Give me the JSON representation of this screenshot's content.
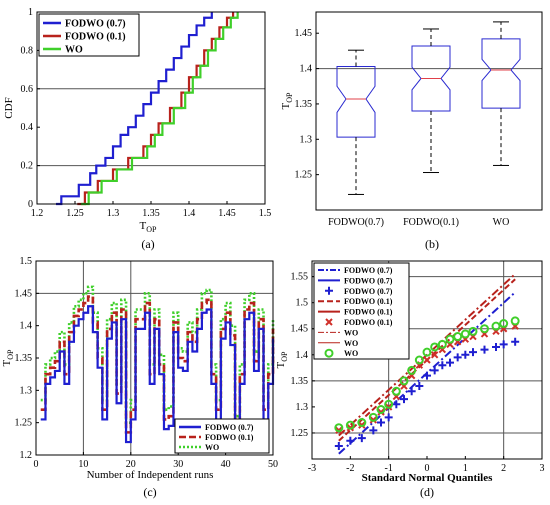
{
  "chart_data": [
    {
      "id": "a",
      "type": "line",
      "subtype": "empirical-cdf-step",
      "caption": "(a)",
      "ylabel": "CDF",
      "xlabel": "T",
      "xlabel_sub": "OP",
      "xlim": [
        1.2,
        1.5
      ],
      "ylim": [
        0,
        1
      ],
      "xticks": [
        "1.2",
        "1.25",
        "1.3",
        "1.35",
        "1.4",
        "1.45",
        "1.5"
      ],
      "yticks": [
        "0",
        "0.2",
        "0.4",
        "0.6",
        "0.8",
        "1"
      ],
      "grid_y": [
        0.2,
        0.6
      ],
      "legend_position": "top-left",
      "series": [
        {
          "name": "FODWO (0.7)",
          "color": "#1f1fd0",
          "x": [
            1.225,
            1.232,
            1.255,
            1.27,
            1.278,
            1.29,
            1.3,
            1.31,
            1.32,
            1.33,
            1.34,
            1.35,
            1.36,
            1.37,
            1.38,
            1.39,
            1.4,
            1.41,
            1.42,
            1.43
          ],
          "y": [
            0,
            0.04,
            0.1,
            0.16,
            0.2,
            0.24,
            0.3,
            0.36,
            0.4,
            0.46,
            0.52,
            0.58,
            0.64,
            0.7,
            0.76,
            0.82,
            0.88,
            0.93,
            0.97,
            1.0
          ]
        },
        {
          "name": "FODWO (0.1)",
          "color": "#b8221c",
          "x": [
            1.253,
            1.263,
            1.28,
            1.3,
            1.32,
            1.34,
            1.35,
            1.36,
            1.375,
            1.39,
            1.4,
            1.41,
            1.42,
            1.43,
            1.44,
            1.45,
            1.458
          ],
          "y": [
            0,
            0.06,
            0.12,
            0.18,
            0.24,
            0.3,
            0.36,
            0.42,
            0.5,
            0.58,
            0.66,
            0.72,
            0.8,
            0.86,
            0.92,
            0.97,
            1.0
          ]
        },
        {
          "name": "WO",
          "color": "#3fcf2a",
          "x": [
            1.258,
            1.268,
            1.285,
            1.305,
            1.325,
            1.345,
            1.355,
            1.365,
            1.38,
            1.395,
            1.405,
            1.415,
            1.425,
            1.435,
            1.445,
            1.455,
            1.464
          ],
          "y": [
            0,
            0.06,
            0.12,
            0.18,
            0.24,
            0.3,
            0.36,
            0.42,
            0.5,
            0.58,
            0.66,
            0.72,
            0.8,
            0.86,
            0.92,
            0.97,
            1.0
          ]
        }
      ]
    },
    {
      "id": "b",
      "type": "boxplot",
      "caption": "(b)",
      "ylabel": "T",
      "ylabel_sub": "OP",
      "ylim": [
        1.2,
        1.48
      ],
      "yticks": [
        "1.25",
        "1.3",
        "1.35",
        "1.4",
        "1.45"
      ],
      "grid_y": [
        1.4
      ],
      "categories": [
        "FODWO(0.7)",
        "FODWO(0.1)",
        "WO"
      ],
      "boxes": [
        {
          "whisker_low": 1.222,
          "q1": 1.303,
          "median": 1.357,
          "q3": 1.403,
          "whisker_high": 1.426,
          "notch_low": 1.338,
          "notch_high": 1.375
        },
        {
          "whisker_low": 1.253,
          "q1": 1.34,
          "median": 1.386,
          "q3": 1.432,
          "whisker_high": 1.456,
          "notch_low": 1.37,
          "notch_high": 1.402
        },
        {
          "whisker_low": 1.263,
          "q1": 1.344,
          "median": 1.398,
          "q3": 1.442,
          "whisker_high": 1.466,
          "notch_low": 1.383,
          "notch_high": 1.413
        }
      ],
      "box_color": "#2a2ad0",
      "median_color": "#e0404a"
    },
    {
      "id": "c",
      "type": "line",
      "subtype": "step",
      "caption": "(c)",
      "ylabel": "T",
      "ylabel_sub": "OP",
      "xlabel": "Number of Independent runs",
      "xlim": [
        0,
        50
      ],
      "ylim": [
        1.2,
        1.5
      ],
      "xticks": [
        "0",
        "10",
        "20",
        "30",
        "40",
        "50"
      ],
      "yticks": [
        "1.2",
        "1.25",
        "1.3",
        "1.35",
        "1.4",
        "1.45",
        "1.5"
      ],
      "grid_x": [
        10,
        20
      ],
      "grid_y": [
        1.45
      ],
      "legend_position": "bottom-right",
      "runs_fodwo07": [
        1.255,
        1.31,
        1.32,
        1.33,
        1.36,
        1.31,
        1.375,
        1.4,
        1.41,
        1.42,
        1.43,
        1.39,
        1.335,
        1.255,
        1.38,
        1.405,
        1.28,
        1.41,
        1.22,
        1.255,
        1.395,
        1.395,
        1.42,
        1.31,
        1.395,
        1.325,
        1.24,
        1.245,
        1.39,
        1.335,
        1.33,
        1.375,
        1.36,
        1.395,
        1.42,
        1.425,
        1.31,
        1.255,
        1.38,
        1.405,
        1.37,
        1.23,
        1.31,
        1.41,
        1.42,
        1.33,
        1.395,
        1.255,
        1.31,
        1.38
      ],
      "series": [
        {
          "name": "FODWO (0.7)",
          "color": "#1f1fd0",
          "offset": 0,
          "dash": "none"
        },
        {
          "name": "FODWO (0.1)",
          "color": "#b8221c",
          "offset": 0.015,
          "dash": "7,3"
        },
        {
          "name": "WO",
          "color": "#3fcf2a",
          "offset": 0.03,
          "dash": "2,2"
        }
      ]
    },
    {
      "id": "d",
      "type": "scatter",
      "subtype": "qq-plot",
      "caption": "(d)",
      "ylabel": "T",
      "ylabel_sub": "OP",
      "xlabel": "Standard Normal Quantiles",
      "xlim": [
        -3,
        3
      ],
      "ylim": [
        1.2,
        1.58
      ],
      "xticks": [
        "-3",
        "-2",
        "-1",
        "0",
        "1",
        "2",
        "3"
      ],
      "yticks": [
        "1.25",
        "1.3",
        "1.35",
        "1.4",
        "1.45",
        "1.5",
        "1.55"
      ],
      "grid_x": [
        -1,
        2
      ],
      "grid_y": [
        1.25,
        1.35,
        1.45,
        1.55
      ],
      "legend_position": "top-left",
      "legend": [
        {
          "name": "FODWO (0.7)",
          "color": "#1f1fd0",
          "kind": "dashdot"
        },
        {
          "name": "FODWO (0.7)",
          "color": "#1f1fd0",
          "kind": "solid"
        },
        {
          "name": "FODWO (0.7)",
          "color": "#1f1fd0",
          "kind": "plus"
        },
        {
          "name": "FODWO (0.1)",
          "color": "#b8221c",
          "kind": "dashed"
        },
        {
          "name": "FODWO (0.1)",
          "color": "#b8221c",
          "kind": "solid"
        },
        {
          "name": "FODWO (0.1)",
          "color": "#b8221c",
          "kind": "cross"
        },
        {
          "name": "WO",
          "color": "#b8221c",
          "kind": "dashdot-thin"
        },
        {
          "name": "WO",
          "color": "#b8221c",
          "kind": "solid-thin"
        },
        {
          "name": "WO",
          "color": "#3fcf2a",
          "kind": "circle"
        }
      ],
      "ref_lines": [
        {
          "color": "#1f1fd0",
          "from": [
            -2.3,
            1.21
          ],
          "to": [
            2.3,
            1.52
          ]
        },
        {
          "color": "#b8221c",
          "from": [
            -2.3,
            1.235
          ],
          "to": [
            2.3,
            1.545
          ]
        },
        {
          "color": "#b8221c",
          "from": [
            -2.3,
            1.245
          ],
          "to": [
            2.3,
            1.555
          ]
        }
      ],
      "points_fodwo07": [
        [
          -2.3,
          1.225
        ],
        [
          -2.0,
          1.235
        ],
        [
          -1.7,
          1.24
        ],
        [
          -1.4,
          1.255
        ],
        [
          -1.2,
          1.27
        ],
        [
          -1.0,
          1.28
        ],
        [
          -0.8,
          1.305
        ],
        [
          -0.6,
          1.315
        ],
        [
          -0.4,
          1.33
        ],
        [
          -0.2,
          1.34
        ],
        [
          0.0,
          1.36
        ],
        [
          0.2,
          1.37
        ],
        [
          0.4,
          1.38
        ],
        [
          0.6,
          1.385
        ],
        [
          0.8,
          1.395
        ],
        [
          1.0,
          1.4
        ],
        [
          1.2,
          1.405
        ],
        [
          1.5,
          1.41
        ],
        [
          1.8,
          1.415
        ],
        [
          2.0,
          1.42
        ],
        [
          2.3,
          1.425
        ]
      ],
      "points_fodwo01": [
        [
          -2.3,
          1.255
        ],
        [
          -2.0,
          1.26
        ],
        [
          -1.7,
          1.265
        ],
        [
          -1.4,
          1.275
        ],
        [
          -1.2,
          1.29
        ],
        [
          -1.0,
          1.3
        ],
        [
          -0.8,
          1.32
        ],
        [
          -0.6,
          1.34
        ],
        [
          -0.4,
          1.36
        ],
        [
          -0.2,
          1.38
        ],
        [
          0.0,
          1.39
        ],
        [
          0.2,
          1.4
        ],
        [
          0.4,
          1.41
        ],
        [
          0.6,
          1.42
        ],
        [
          0.8,
          1.425
        ],
        [
          1.0,
          1.43
        ],
        [
          1.2,
          1.435
        ],
        [
          1.5,
          1.44
        ],
        [
          1.8,
          1.445
        ],
        [
          2.0,
          1.45
        ],
        [
          2.3,
          1.455
        ]
      ],
      "points_wo": [
        [
          -2.3,
          1.26
        ],
        [
          -2.0,
          1.265
        ],
        [
          -1.7,
          1.27
        ],
        [
          -1.4,
          1.28
        ],
        [
          -1.2,
          1.295
        ],
        [
          -1.0,
          1.305
        ],
        [
          -0.8,
          1.33
        ],
        [
          -0.6,
          1.35
        ],
        [
          -0.4,
          1.37
        ],
        [
          -0.2,
          1.39
        ],
        [
          0.0,
          1.405
        ],
        [
          0.2,
          1.415
        ],
        [
          0.4,
          1.42
        ],
        [
          0.6,
          1.43
        ],
        [
          0.8,
          1.435
        ],
        [
          1.0,
          1.44
        ],
        [
          1.2,
          1.445
        ],
        [
          1.5,
          1.45
        ],
        [
          1.8,
          1.455
        ],
        [
          2.0,
          1.46
        ],
        [
          2.3,
          1.465
        ]
      ]
    }
  ]
}
